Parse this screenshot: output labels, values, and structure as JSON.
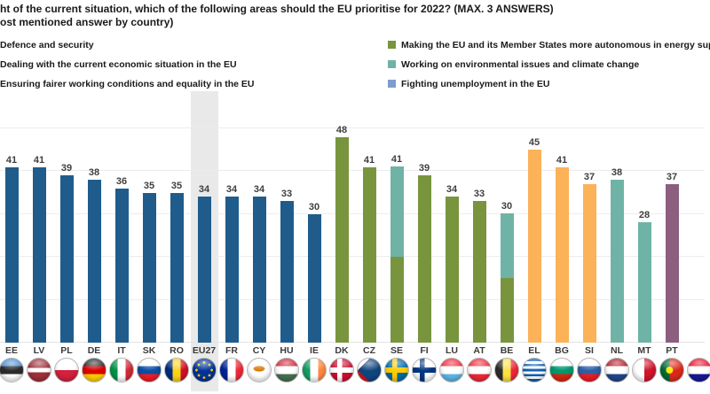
{
  "title": {
    "line1": "ht of the current situation, which of the following areas should the EU prioritise for 2022? (MAX. 3 ANSWERS)",
    "line2": "ost mentioned answer by country)"
  },
  "category_colors": {
    "defence": "#1F5C8C",
    "economy": "#FBB259",
    "fairness": "#8C5F7F",
    "energy": "#78953E",
    "environment": "#6FB3A6",
    "unemployment": "#7E9CD0"
  },
  "legend": {
    "left": [
      {
        "category": "defence",
        "label": "Defence and security",
        "swatch_visible": false
      },
      {
        "category": "economy",
        "label": "Dealing with the current economic situation in the EU",
        "swatch_visible": false
      },
      {
        "category": "fairness",
        "label": "Ensuring fairer working conditions and equality in the EU",
        "swatch_visible": false
      }
    ],
    "right": [
      {
        "category": "energy",
        "label": "Making the EU and its Member States more autonomous in energy sup",
        "swatch_visible": true
      },
      {
        "category": "environment",
        "label": "Working on environmental issues and climate change",
        "swatch_visible": true
      },
      {
        "category": "unemployment",
        "label": "Fighting unemployment in the EU",
        "swatch_visible": true
      }
    ]
  },
  "chart_data": {
    "type": "bar",
    "title": "ht of the current situation, which of the following areas should the EU prioritise for 2022? (MAX. 3 ANSWERS)",
    "subtitle": "ost mentioned answer by country)",
    "ylim": [
      0,
      58
    ],
    "grid": true,
    "gridline_values": [
      10,
      20,
      30,
      40,
      50
    ],
    "legend_position": "top",
    "highlighted_category": "EU27",
    "categories": [
      "EE",
      "LV",
      "PL",
      "DE",
      "IT",
      "SK",
      "RO",
      "EU27",
      "FR",
      "CY",
      "HU",
      "IE",
      "DK",
      "CZ",
      "SE",
      "FI",
      "LU",
      "AT",
      "BE",
      "EL",
      "BG",
      "SI",
      "NL",
      "MT",
      "PT"
    ],
    "values": [
      41,
      41,
      39,
      38,
      36,
      35,
      35,
      34,
      34,
      34,
      33,
      30,
      48,
      41,
      41,
      39,
      34,
      33,
      30,
      45,
      41,
      37,
      38,
      28,
      37
    ],
    "bars": [
      {
        "code": "EE",
        "value": 41,
        "segments": [
          {
            "category": "defence",
            "value": 41
          }
        ],
        "flag": {
          "type": "h",
          "stripes": [
            "#4A8FD3",
            "#2b2b2b",
            "#FFFFFF"
          ]
        }
      },
      {
        "code": "LV",
        "value": 41,
        "segments": [
          {
            "category": "defence",
            "value": 41
          }
        ],
        "flag": {
          "type": "h",
          "stripes": [
            "#9E3039",
            "#FFFFFF",
            "#9E3039"
          ],
          "weights": [
            2,
            1,
            2
          ]
        }
      },
      {
        "code": "PL",
        "value": 39,
        "segments": [
          {
            "category": "defence",
            "value": 39
          }
        ],
        "flag": {
          "type": "h",
          "stripes": [
            "#FFFFFF",
            "#D4213D"
          ]
        }
      },
      {
        "code": "DE",
        "value": 38,
        "segments": [
          {
            "category": "defence",
            "value": 38
          }
        ],
        "flag": {
          "type": "h",
          "stripes": [
            "#2b2b2b",
            "#DD0000",
            "#FFCE00"
          ]
        }
      },
      {
        "code": "IT",
        "value": 36,
        "segments": [
          {
            "category": "defence",
            "value": 36
          }
        ],
        "flag": {
          "type": "v",
          "stripes": [
            "#009246",
            "#FFFFFF",
            "#CE2B37"
          ]
        }
      },
      {
        "code": "SK",
        "value": 35,
        "segments": [
          {
            "category": "defence",
            "value": 35
          }
        ],
        "flag": {
          "type": "h",
          "stripes": [
            "#FFFFFF",
            "#0B4EA2",
            "#EE1C25"
          ]
        }
      },
      {
        "code": "RO",
        "value": 35,
        "segments": [
          {
            "category": "defence",
            "value": 35
          }
        ],
        "flag": {
          "type": "v",
          "stripes": [
            "#002B7F",
            "#FCD116",
            "#CE1126"
          ]
        }
      },
      {
        "code": "EU27",
        "value": 34,
        "highlight": true,
        "segments": [
          {
            "category": "defence",
            "value": 34
          }
        ],
        "flag": {
          "type": "eu",
          "bg": "#003399",
          "star": "#FFCC00"
        }
      },
      {
        "code": "FR",
        "value": 34,
        "segments": [
          {
            "category": "defence",
            "value": 34
          }
        ],
        "flag": {
          "type": "v",
          "stripes": [
            "#002395",
            "#FFFFFF",
            "#ED2939"
          ]
        }
      },
      {
        "code": "CY",
        "value": 34,
        "segments": [
          {
            "category": "defence",
            "value": 34
          }
        ],
        "flag": {
          "type": "cy",
          "bg": "#FFFFFF",
          "emblem": "#D57800"
        }
      },
      {
        "code": "HU",
        "value": 33,
        "segments": [
          {
            "category": "defence",
            "value": 33
          }
        ],
        "flag": {
          "type": "h",
          "stripes": [
            "#CE2939",
            "#FFFFFF",
            "#477050"
          ]
        }
      },
      {
        "code": "IE",
        "value": 30,
        "segments": [
          {
            "category": "defence",
            "value": 30
          }
        ],
        "flag": {
          "type": "v",
          "stripes": [
            "#169B62",
            "#FFFFFF",
            "#FF883E"
          ]
        }
      },
      {
        "code": "DK",
        "value": 48,
        "segments": [
          {
            "category": "energy",
            "value": 48
          }
        ],
        "flag": {
          "type": "cross",
          "bg": "#C8102E",
          "cross": "#FFFFFF"
        }
      },
      {
        "code": "CZ",
        "value": 41,
        "segments": [
          {
            "category": "energy",
            "value": 41
          }
        ],
        "flag": {
          "type": "cz",
          "top": "#FFFFFF",
          "bottom": "#D7141A",
          "triangle": "#11457E"
        }
      },
      {
        "code": "SE",
        "value": 41,
        "segments": [
          {
            "category": "environment",
            "value": 21
          },
          {
            "category": "energy",
            "value": 20
          }
        ],
        "flag": {
          "type": "cross",
          "bg": "#006AA7",
          "cross": "#FECC00"
        }
      },
      {
        "code": "FI",
        "value": 39,
        "segments": [
          {
            "category": "energy",
            "value": 39
          }
        ],
        "flag": {
          "type": "cross",
          "bg": "#FFFFFF",
          "cross": "#003580"
        }
      },
      {
        "code": "LU",
        "value": 34,
        "segments": [
          {
            "category": "energy",
            "value": 34
          }
        ],
        "flag": {
          "type": "h",
          "stripes": [
            "#ED2939",
            "#FFFFFF",
            "#5EB6E4"
          ]
        }
      },
      {
        "code": "AT",
        "value": 33,
        "segments": [
          {
            "category": "energy",
            "value": 33
          }
        ],
        "flag": {
          "type": "h",
          "stripes": [
            "#ED2939",
            "#FFFFFF",
            "#ED2939"
          ]
        }
      },
      {
        "code": "BE",
        "value": 30,
        "segments": [
          {
            "category": "environment",
            "value": 15
          },
          {
            "category": "energy",
            "value": 15
          }
        ],
        "flag": {
          "type": "v",
          "stripes": [
            "#2b2b2b",
            "#FAE042",
            "#ED2939"
          ]
        }
      },
      {
        "code": "EL",
        "value": 45,
        "segments": [
          {
            "category": "economy",
            "value": 45
          }
        ],
        "flag": {
          "type": "h",
          "stripes": [
            "#0D5EAF",
            "#FFFFFF",
            "#0D5EAF",
            "#FFFFFF",
            "#0D5EAF",
            "#FFFFFF",
            "#0D5EAF",
            "#FFFFFF",
            "#0D5EAF"
          ]
        }
      },
      {
        "code": "BG",
        "value": 41,
        "segments": [
          {
            "category": "economy",
            "value": 41
          }
        ],
        "flag": {
          "type": "h",
          "stripes": [
            "#FFFFFF",
            "#00966E",
            "#D62612"
          ]
        }
      },
      {
        "code": "SI",
        "value": 37,
        "segments": [
          {
            "category": "economy",
            "value": 37
          }
        ],
        "flag": {
          "type": "h",
          "stripes": [
            "#FFFFFF",
            "#2E5FA3",
            "#ED1C24"
          ]
        }
      },
      {
        "code": "NL",
        "value": 38,
        "segments": [
          {
            "category": "environment",
            "value": 38
          }
        ],
        "flag": {
          "type": "h",
          "stripes": [
            "#AE1C28",
            "#FFFFFF",
            "#21468B"
          ]
        }
      },
      {
        "code": "MT",
        "value": 28,
        "segments": [
          {
            "category": "environment",
            "value": 28
          }
        ],
        "flag": {
          "type": "v",
          "stripes": [
            "#FFFFFF",
            "#CF142B"
          ]
        }
      },
      {
        "code": "PT",
        "value": 37,
        "segments": [
          {
            "category": "fairness",
            "value": 37
          }
        ],
        "flag": {
          "type": "pt",
          "left": "#046A38",
          "right": "#DA291C",
          "emblem": "#FFE900"
        }
      },
      {
        "code": "",
        "value": null,
        "segments": [],
        "flag": {
          "type": "h",
          "stripes": [
            "#E8112D",
            "#FFFFFF",
            "#171796"
          ]
        }
      }
    ]
  }
}
